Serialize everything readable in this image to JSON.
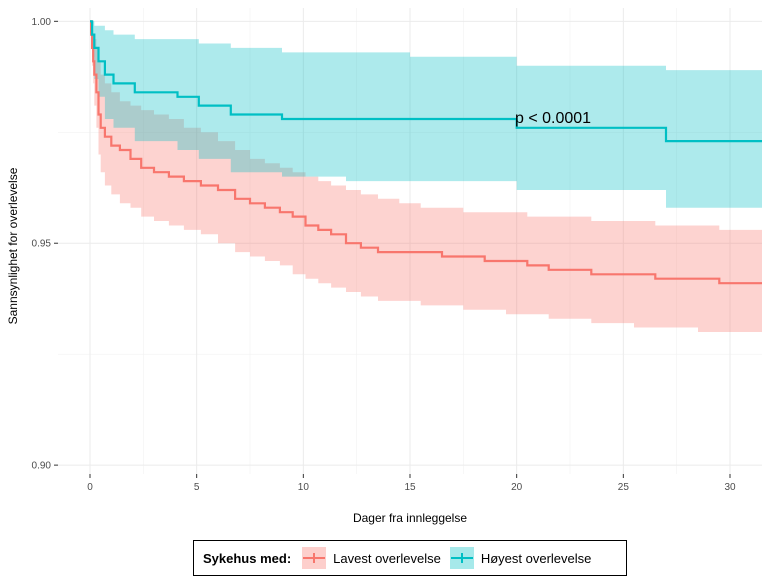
{
  "chart_data": {
    "type": "line",
    "subtype": "kaplan-meier survival curve with confidence bands",
    "title": "",
    "xlabel": "Dager fra innleggelse",
    "ylabel": "Sannsynlighet for overlevelse",
    "xlim": [
      -1.5,
      31.5
    ],
    "ylim": [
      0.898,
      1.003
    ],
    "x_ticks": [
      0,
      5,
      10,
      15,
      20,
      25,
      30
    ],
    "x_tick_labels": [
      "0",
      "5",
      "10",
      "15",
      "20",
      "25",
      "30"
    ],
    "y_ticks": [
      0.9,
      0.95,
      1.0
    ],
    "y_tick_labels": [
      "0.90",
      "0.95",
      "1.00"
    ],
    "grid": true,
    "annotation": {
      "text": "p < 0.0001",
      "x": 20,
      "y": 0.9775
    },
    "legend": {
      "title": "Sykehus med:",
      "position": "bottom"
    },
    "series": [
      {
        "name": "Lavest overlevelse",
        "color": "#F8766D",
        "fill": "#F8766D",
        "x": [
          0,
          0.05,
          0.1,
          0.15,
          0.2,
          0.3,
          0.4,
          0.5,
          0.7,
          1.0,
          1.4,
          1.9,
          2.4,
          3.0,
          3.7,
          4.4,
          5.2,
          6.0,
          6.8,
          7.5,
          8.2,
          8.9,
          9.5,
          10.1,
          10.7,
          11.3,
          12.0,
          12.7,
          13.5,
          14.5,
          15.5,
          16.5,
          17.5,
          18.5,
          19.5,
          20.5,
          21.5,
          22.5,
          23.5,
          24.5,
          25.5,
          26.5,
          27.5,
          28.5,
          29.5,
          31.5
        ],
        "y": [
          1.0,
          0.997,
          0.994,
          0.991,
          0.988,
          0.984,
          0.979,
          0.976,
          0.974,
          0.972,
          0.971,
          0.969,
          0.967,
          0.966,
          0.965,
          0.964,
          0.963,
          0.962,
          0.96,
          0.959,
          0.958,
          0.957,
          0.956,
          0.954,
          0.953,
          0.952,
          0.95,
          0.949,
          0.948,
          0.948,
          0.948,
          0.947,
          0.947,
          0.946,
          0.946,
          0.945,
          0.944,
          0.944,
          0.943,
          0.943,
          0.943,
          0.942,
          0.942,
          0.942,
          0.941,
          0.941
        ],
        "upper": [
          1.0,
          0.999,
          0.998,
          0.997,
          0.996,
          0.994,
          0.991,
          0.988,
          0.986,
          0.984,
          0.982,
          0.981,
          0.98,
          0.979,
          0.978,
          0.976,
          0.975,
          0.973,
          0.971,
          0.969,
          0.968,
          0.967,
          0.966,
          0.965,
          0.964,
          0.963,
          0.962,
          0.961,
          0.96,
          0.959,
          0.958,
          0.958,
          0.957,
          0.957,
          0.957,
          0.956,
          0.956,
          0.956,
          0.955,
          0.955,
          0.955,
          0.954,
          0.954,
          0.954,
          0.953,
          0.953
        ],
        "lower": [
          1.0,
          0.995,
          0.99,
          0.986,
          0.981,
          0.976,
          0.97,
          0.966,
          0.963,
          0.961,
          0.959,
          0.958,
          0.956,
          0.955,
          0.954,
          0.953,
          0.952,
          0.95,
          0.948,
          0.947,
          0.946,
          0.945,
          0.943,
          0.942,
          0.941,
          0.94,
          0.939,
          0.938,
          0.937,
          0.937,
          0.936,
          0.936,
          0.935,
          0.935,
          0.934,
          0.934,
          0.933,
          0.933,
          0.932,
          0.932,
          0.931,
          0.931,
          0.931,
          0.93,
          0.93,
          0.93
        ]
      },
      {
        "name": "Høyest overlevelse",
        "color": "#00BFC4",
        "fill": "#00BFC4",
        "x": [
          0,
          0.1,
          0.2,
          0.4,
          0.7,
          1.1,
          2.1,
          4.1,
          5.1,
          6.6,
          9.0,
          12.0,
          15.0,
          20.0,
          27.0,
          31.5
        ],
        "y": [
          1.0,
          0.997,
          0.994,
          0.991,
          0.988,
          0.986,
          0.984,
          0.983,
          0.981,
          0.979,
          0.978,
          0.978,
          0.978,
          0.976,
          0.973,
          0.973
        ],
        "upper": [
          1.0,
          1.0,
          0.999,
          0.999,
          0.998,
          0.997,
          0.996,
          0.996,
          0.995,
          0.994,
          0.993,
          0.993,
          0.992,
          0.99,
          0.989,
          0.989
        ],
        "lower": [
          1.0,
          0.992,
          0.987,
          0.983,
          0.978,
          0.976,
          0.973,
          0.971,
          0.969,
          0.966,
          0.965,
          0.964,
          0.964,
          0.962,
          0.958,
          0.958
        ]
      }
    ]
  }
}
